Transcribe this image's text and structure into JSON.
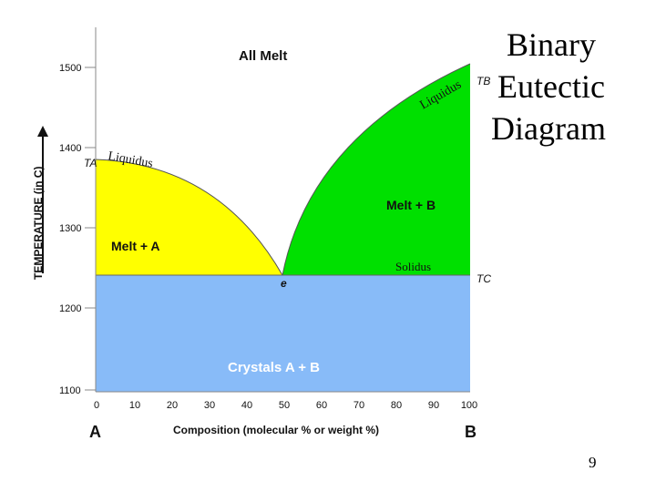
{
  "slide": {
    "title_lines": [
      "Binary",
      "Eutectic",
      "Diagram"
    ],
    "page_number": "9"
  },
  "diagram": {
    "colors": {
      "all_melt": "#ffffff",
      "melt_plus_a": "#ffff00",
      "melt_plus_b": "#00e000",
      "crystals": "#88bbf8",
      "region_text": "#111111",
      "crystals_text": "#ffffff"
    },
    "axes": {
      "y_label": "TEMPERATURE (in C)",
      "y_ticks": [
        "1500",
        "1400",
        "1300",
        "1200",
        "1100"
      ],
      "x_ticks": [
        "0",
        "10",
        "20",
        "30",
        "40",
        "50",
        "60",
        "70",
        "80",
        "90",
        "100"
      ],
      "x_label": "Composition (molecular % or weight %)",
      "left_end": "A",
      "right_end": "B"
    },
    "regions": {
      "all_melt": "All Melt",
      "melt_a": "Melt + A",
      "melt_b": "Melt + B",
      "crystals": "Crystals A + B"
    },
    "annotations": {
      "liquidus_left": "Liquidus",
      "liquidus_right": "Liquidus",
      "solidus": "Solidus",
      "eutectic_point": "e",
      "ta": "TA",
      "tb": "TB",
      "tc": "TC"
    }
  }
}
